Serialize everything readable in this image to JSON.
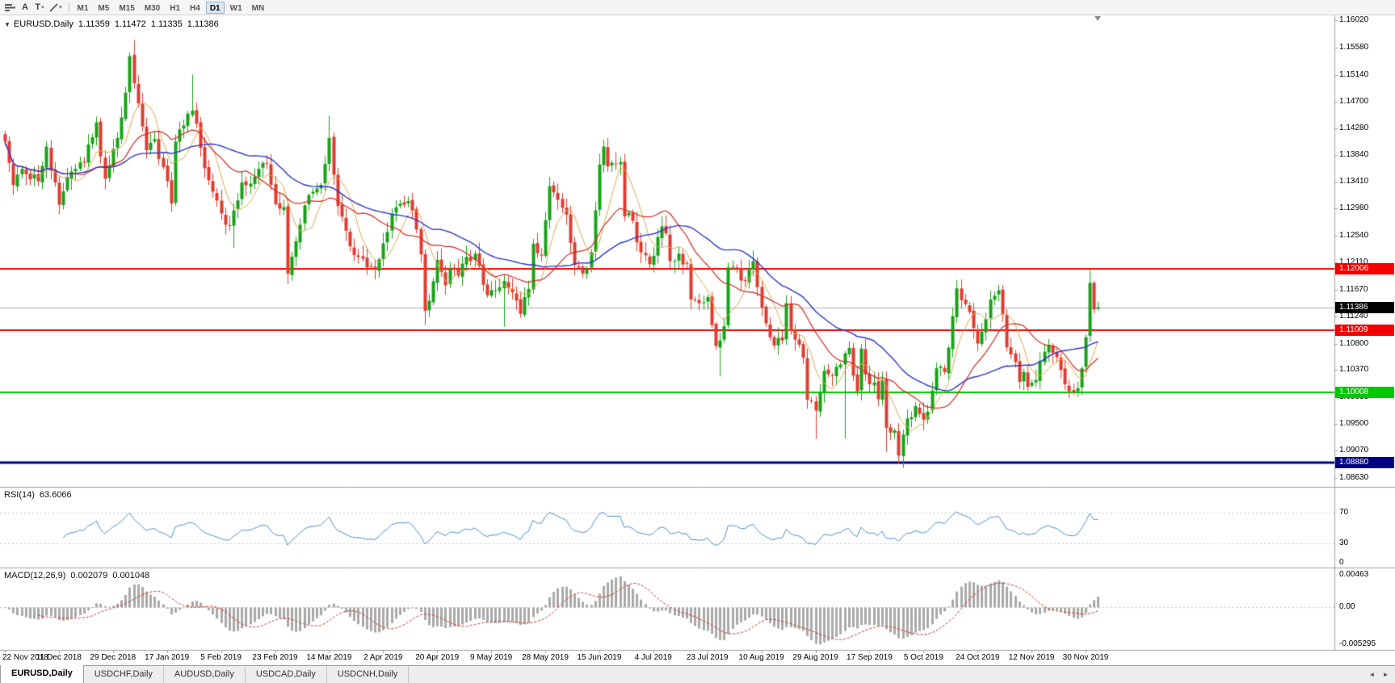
{
  "toolbar": {
    "text_label_glyph": "A",
    "text_tool_glyph": "T",
    "dropdown_glyph": "▾",
    "timeframes": [
      {
        "label": "M1",
        "active": false
      },
      {
        "label": "M5",
        "active": false
      },
      {
        "label": "M15",
        "active": false
      },
      {
        "label": "M30",
        "active": false
      },
      {
        "label": "H1",
        "active": false
      },
      {
        "label": "H4",
        "active": false
      },
      {
        "label": "D1",
        "active": true
      },
      {
        "label": "W1",
        "active": false
      },
      {
        "label": "MN",
        "active": false
      }
    ]
  },
  "chart": {
    "collapse_glyph": "▼",
    "title": {
      "symbol": "EURUSD,Daily",
      "open": "1.11359",
      "high": "1.11472",
      "low": "1.11335",
      "close": "1.11386"
    }
  },
  "chart_data": {
    "type": "candlestick",
    "symbol": "EURUSD",
    "timeframe": "Daily",
    "last_candle": {
      "open": 1.11359,
      "high": 1.11472,
      "low": 1.11335,
      "close": 1.11386
    },
    "y_axis_ticks": [
      "1.16020",
      "1.15580",
      "1.15140",
      "1.14700",
      "1.14280",
      "1.13840",
      "1.13410",
      "1.12980",
      "1.12540",
      "1.12110",
      "1.11670",
      "1.11240",
      "1.10800",
      "1.10370",
      "1.09935",
      "1.09500",
      "1.09070",
      "1.08630"
    ],
    "x_axis_labels": [
      "22 Nov 2018",
      "11 Dec 2018",
      "29 Dec 2018",
      "17 Jan 2019",
      "5 Feb 2019",
      "23 Feb 2019",
      "14 Mar 2019",
      "2 Apr 2019",
      "20 Apr 2019",
      "9 May 2019",
      "28 May 2019",
      "15 Jun 2019",
      "4 Jul 2019",
      "23 Jul 2019",
      "10 Aug 2019",
      "29 Aug 2019",
      "17 Sep 2019",
      "5 Oct 2019",
      "24 Oct 2019",
      "12 Nov 2019",
      "30 Nov 2019"
    ],
    "bars_per_label": 13,
    "bar_count": 264,
    "horizontal_lines": [
      {
        "name": "resistance-upper",
        "price": 1.12006,
        "label": "1.12006",
        "color": "#f40000",
        "width": 2
      },
      {
        "name": "resistance-lower",
        "price": 1.11009,
        "label": "1.11009",
        "color": "#f40000",
        "width": 2
      },
      {
        "name": "support-green",
        "price": 1.10008,
        "label": "1.10008",
        "color": "#00c800",
        "width": 2
      },
      {
        "name": "support-navy",
        "price": 1.0888,
        "label": "1.08880",
        "color": "#000082",
        "width": 3
      }
    ],
    "bid_line": {
      "price": 1.11386,
      "label": "1.11386",
      "color": "#000000"
    },
    "colors": {
      "up_candle": "#17a317",
      "down_candle": "#e23a2e"
    },
    "moving_averages": [
      {
        "name": "fast",
        "period": 7,
        "color": "#ddab4e"
      },
      {
        "name": "medium",
        "period": 18,
        "color": "#d42b20"
      },
      {
        "name": "slow",
        "period": 36,
        "color": "#3036cc"
      }
    ],
    "close_keyframes": [
      [
        0,
        1.1406
      ],
      [
        2,
        1.1336
      ],
      [
        4,
        1.1362
      ],
      [
        6,
        1.1345
      ],
      [
        8,
        1.1342
      ],
      [
        10,
        1.1398
      ],
      [
        13,
        1.1304
      ],
      [
        15,
        1.1348
      ],
      [
        17,
        1.1362
      ],
      [
        19,
        1.1372
      ],
      [
        22,
        1.1437
      ],
      [
        24,
        1.1346
      ],
      [
        26,
        1.1394
      ],
      [
        28,
        1.1445
      ],
      [
        30,
        1.1544
      ],
      [
        31,
        1.15
      ],
      [
        32,
        1.1468
      ],
      [
        34,
        1.1392
      ],
      [
        36,
        1.141
      ],
      [
        38,
        1.1365
      ],
      [
        40,
        1.1306
      ],
      [
        41,
        1.1406
      ],
      [
        43,
        1.1432
      ],
      [
        45,
        1.1456
      ],
      [
        46,
        1.1435
      ],
      [
        48,
        1.1363
      ],
      [
        50,
        1.1325
      ],
      [
        52,
        1.129
      ],
      [
        54,
        1.127
      ],
      [
        55,
        1.1295
      ],
      [
        57,
        1.134
      ],
      [
        59,
        1.1338
      ],
      [
        61,
        1.1362
      ],
      [
        63,
        1.137
      ],
      [
        65,
        1.1305
      ],
      [
        67,
        1.13
      ],
      [
        68,
        1.1193
      ],
      [
        70,
        1.1245
      ],
      [
        72,
        1.1303
      ],
      [
        74,
        1.1325
      ],
      [
        76,
        1.1336
      ],
      [
        78,
        1.1412
      ],
      [
        80,
        1.1302
      ],
      [
        82,
        1.1262
      ],
      [
        84,
        1.1223
      ],
      [
        86,
        1.1217
      ],
      [
        88,
        1.1204
      ],
      [
        90,
        1.1216
      ],
      [
        92,
        1.126
      ],
      [
        94,
        1.13
      ],
      [
        96,
        1.1304
      ],
      [
        98,
        1.1295
      ],
      [
        100,
        1.1224
      ],
      [
        101,
        1.1133
      ],
      [
        102,
        1.1149
      ],
      [
        104,
        1.1215
      ],
      [
        106,
        1.1174
      ],
      [
        107,
        1.12
      ],
      [
        109,
        1.119
      ],
      [
        111,
        1.122
      ],
      [
        113,
        1.1225
      ],
      [
        115,
        1.1175
      ],
      [
        116,
        1.1158
      ],
      [
        118,
        1.1166
      ],
      [
        120,
        1.1181
      ],
      [
        122,
        1.1163
      ],
      [
        124,
        1.1128
      ],
      [
        126,
        1.1168
      ],
      [
        127,
        1.1241
      ],
      [
        129,
        1.1222
      ],
      [
        131,
        1.1334
      ],
      [
        133,
        1.1312
      ],
      [
        135,
        1.1288
      ],
      [
        137,
        1.1207
      ],
      [
        139,
        1.1193
      ],
      [
        141,
        1.1227
      ],
      [
        142,
        1.1295
      ],
      [
        143,
        1.1369
      ],
      [
        144,
        1.1398
      ],
      [
        145,
        1.1366
      ],
      [
        147,
        1.137
      ],
      [
        148,
        1.1373
      ],
      [
        149,
        1.1285
      ],
      [
        151,
        1.1278
      ],
      [
        153,
        1.1227
      ],
      [
        155,
        1.1208
      ],
      [
        157,
        1.1252
      ],
      [
        158,
        1.1269
      ],
      [
        159,
        1.1258
      ],
      [
        160,
        1.1213
      ],
      [
        162,
        1.1225
      ],
      [
        164,
        1.1209
      ],
      [
        165,
        1.1151
      ],
      [
        167,
        1.1145
      ],
      [
        169,
        1.1155
      ],
      [
        171,
        1.1076
      ],
      [
        172,
        1.1085
      ],
      [
        173,
        1.1108
      ],
      [
        174,
        1.1203
      ],
      [
        176,
        1.12
      ],
      [
        178,
        1.1181
      ],
      [
        180,
        1.1213
      ],
      [
        181,
        1.1171
      ],
      [
        182,
        1.1138
      ],
      [
        184,
        1.109
      ],
      [
        185,
        1.1077
      ],
      [
        187,
        1.1085
      ],
      [
        188,
        1.1145
      ],
      [
        189,
        1.1101
      ],
      [
        191,
        1.1078
      ],
      [
        192,
        1.1057
      ],
      [
        193,
        1.0989
      ],
      [
        195,
        1.0972
      ],
      [
        197,
        1.1036
      ],
      [
        199,
        1.1028
      ],
      [
        201,
        1.1046
      ],
      [
        202,
        1.1064
      ],
      [
        203,
        1.1073
      ],
      [
        205,
        1.1003
      ],
      [
        206,
        1.1072
      ],
      [
        207,
        1.103
      ],
      [
        209,
        1.1017
      ],
      [
        210,
        1.099
      ],
      [
        211,
        1.1021
      ],
      [
        212,
        1.0944
      ],
      [
        214,
        1.094
      ],
      [
        215,
        1.0899
      ],
      [
        216,
        1.0933
      ],
      [
        217,
        1.0959
      ],
      [
        219,
        1.0979
      ],
      [
        221,
        1.0957
      ],
      [
        223,
        1.1004
      ],
      [
        224,
        1.104
      ],
      [
        226,
        1.1034
      ],
      [
        227,
        1.1073
      ],
      [
        228,
        1.1124
      ],
      [
        229,
        1.1169
      ],
      [
        230,
        1.115
      ],
      [
        232,
        1.1131
      ],
      [
        233,
        1.1105
      ],
      [
        234,
        1.108
      ],
      [
        235,
        1.1099
      ],
      [
        237,
        1.1151
      ],
      [
        239,
        1.1166
      ],
      [
        240,
        1.1127
      ],
      [
        241,
        1.1074
      ],
      [
        243,
        1.105
      ],
      [
        244,
        1.1018
      ],
      [
        245,
        1.1034
      ],
      [
        246,
        1.101
      ],
      [
        248,
        1.1021
      ],
      [
        249,
        1.1052
      ],
      [
        251,
        1.1078
      ],
      [
        253,
        1.1058
      ],
      [
        255,
        1.1014
      ],
      [
        257,
        1.1001
      ],
      [
        258,
        1.1008
      ],
      [
        259,
        1.104
      ],
      [
        260,
        1.109
      ],
      [
        261,
        1.1178
      ],
      [
        262,
        1.1135
      ],
      [
        263,
        1.11386
      ]
    ],
    "wick_overrides": [
      [
        30,
        "high",
        1.155
      ],
      [
        31,
        "high",
        1.157
      ],
      [
        45,
        "high",
        1.1514
      ],
      [
        55,
        "low",
        1.1234
      ],
      [
        68,
        "low",
        1.1176
      ],
      [
        78,
        "high",
        1.1448
      ],
      [
        101,
        "low",
        1.111
      ],
      [
        120,
        "low",
        1.1107
      ],
      [
        145,
        "high",
        1.1412
      ],
      [
        172,
        "low",
        1.1027
      ],
      [
        195,
        "low",
        1.0926
      ],
      [
        202,
        "low",
        1.0927
      ],
      [
        212,
        "low",
        1.0905
      ],
      [
        216,
        "low",
        1.0879
      ],
      [
        261,
        "high",
        1.12
      ]
    ]
  },
  "rsi": {
    "label": "RSI(14)",
    "value": "63.6066",
    "color": "#4a90d2",
    "axis": [
      {
        "label": "70",
        "value": 70
      },
      {
        "label": "30",
        "value": 30
      },
      {
        "label": "0",
        "value": 0
      }
    ]
  },
  "macd": {
    "label": "MACD(12,26,9)",
    "value_macd": "0.002079",
    "value_signal": "0.001048",
    "histogram_color": "#a9a9a9",
    "signal_color": "#d43030",
    "axis": [
      {
        "label": "0.00463",
        "value": 0.00463
      },
      {
        "label": "0.00",
        "value": 0
      },
      {
        "label": "-0.005295",
        "value": -0.005295
      }
    ]
  },
  "tabs": {
    "items": [
      {
        "label": "EURUSD,Daily",
        "active": true
      },
      {
        "label": "USDCHF,Daily",
        "active": false
      },
      {
        "label": "AUDUSD,Daily",
        "active": false
      },
      {
        "label": "USDCAD,Daily",
        "active": false
      },
      {
        "label": "USDCNH,Daily",
        "active": false
      }
    ],
    "scroll_left_glyph": "◄",
    "scroll_right_glyph": "►"
  }
}
